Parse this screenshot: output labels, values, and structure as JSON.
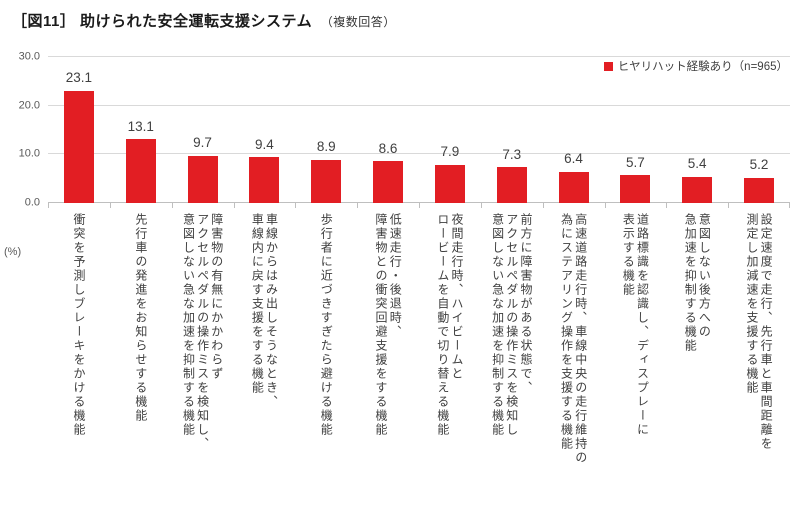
{
  "title": {
    "main": "［図11］ 助けられた安全運転支援システム",
    "note": "（複数回答）"
  },
  "legend": {
    "label": "ヒヤリハット経験あり（n=965）"
  },
  "y_axis_unit": "(%)",
  "chart_data": {
    "type": "bar",
    "title": "助けられた安全運転支援システム（複数回答）",
    "legend_entries": [
      "ヒヤリハット経験あり（n=965）"
    ],
    "legend_position": "top-right",
    "grid": true,
    "ylabel": "(%)",
    "ylim": [
      0,
      30
    ],
    "yticks": [
      0,
      10,
      20,
      30
    ],
    "ytick_labels": [
      "0.0",
      "10.0",
      "20.0",
      "30.0"
    ],
    "bar_color": "#e21e23",
    "categories": [
      "衝突を予測しブレーキをかける機能",
      "先行車の発進をお知らせする機能",
      "障害物の有無にかかわらず\nアクセルペダルの操作ミスを検知し、\n意図しない急な加速を抑制する機能",
      "車線からはみ出しそうなとき、\n車線内に戻す支援をする機能",
      "歩行者に近づきすぎたら避ける機能",
      "低速走行・後退時、\n障害物との衝突回避支援をする機能",
      "夜間走行時、ハイビームと\nロービームを自動で切り替える機能",
      "前方に障害物がある状態で、\nアクセルペダルの操作ミスを検知し\n意図しない急な加速を抑制する機能",
      "高速道路走行時、車線中央の走行維持の\n為にステアリング操作を支援する機能",
      "道路標識を認識し、ディスプレーに\n表示する機能",
      "意図しない後方への\n急加速を抑制する機能",
      "設定速度で走行、先行車と車間距離を\n測定し加減速を支援する機能"
    ],
    "values": [
      23.1,
      13.1,
      9.7,
      9.4,
      8.9,
      8.6,
      7.9,
      7.3,
      6.4,
      5.7,
      5.4,
      5.2
    ]
  }
}
